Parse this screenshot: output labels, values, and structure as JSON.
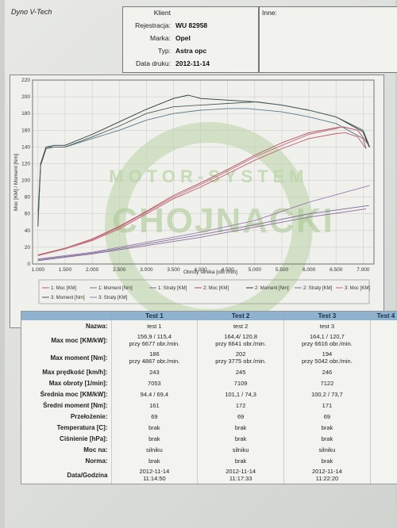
{
  "header": {
    "brand": "Dyno V-Tech",
    "klient_label": "Klient",
    "klient_value": "",
    "rejestracja_label": "Rejestracja:",
    "rejestracja_value": "WU 82958",
    "marka_label": "Marka:",
    "marka_value": "Opel",
    "typ_label": "Typ:",
    "typ_value": "Astra opc",
    "data_label": "Data druku:",
    "data_value": "2012-11-14",
    "inne_label": "Inne:"
  },
  "watermark": {
    "arc_text": "MOTOR-SYSTEM",
    "name": "CHOJNACKI"
  },
  "chart_data": {
    "type": "line",
    "xlabel": "Obroty silnika [obr./min]",
    "ylabel": "Moc [KM] / Moment [Nm]",
    "xlim": [
      900,
      7200
    ],
    "ylim": [
      0,
      220
    ],
    "xticks": [
      "1.000",
      "1.500",
      "2.000",
      "2.500",
      "3.000",
      "3.500",
      "4.000",
      "4.500",
      "5.000",
      "5.500",
      "6.000",
      "6.500",
      "7.000"
    ],
    "yticks": [
      "0",
      "20",
      "40",
      "60",
      "80",
      "100",
      "120",
      "140",
      "160",
      "180",
      "200",
      "220"
    ],
    "grid": true,
    "legend_position": "bottom",
    "series": [
      {
        "name": "1: Moc [KM]",
        "color": "#c25a6a",
        "x": [
          1000,
          1500,
          2000,
          2500,
          3000,
          3500,
          4000,
          4500,
          5000,
          5500,
          6000,
          6500,
          6677,
          6900,
          7053
        ],
        "y": [
          10,
          18,
          28,
          42,
          60,
          78,
          92,
          108,
          124,
          138,
          150,
          156,
          157,
          152,
          138
        ]
      },
      {
        "name": "1: Moment [Nm]",
        "color": "#5a7a8a",
        "x": [
          1000,
          1050,
          1150,
          1300,
          1500,
          2000,
          2500,
          3000,
          3500,
          4000,
          4500,
          4867,
          5500,
          6000,
          6500,
          7000,
          7053
        ],
        "y": [
          62,
          120,
          140,
          140,
          140,
          150,
          160,
          172,
          180,
          184,
          186,
          186,
          182,
          176,
          168,
          150,
          138
        ]
      },
      {
        "name": "1: Straty [KM]",
        "color": "#8a6a9a",
        "x": [
          1000,
          2000,
          3000,
          4000,
          5000,
          6000,
          7053
        ],
        "y": [
          4,
          12,
          22,
          32,
          44,
          56,
          66
        ]
      },
      {
        "name": "2: Moc [KM]",
        "color": "#b05060",
        "x": [
          1000,
          1500,
          2000,
          2500,
          3000,
          3500,
          4000,
          4500,
          5000,
          5500,
          6000,
          6500,
          6641,
          6900,
          7109
        ],
        "y": [
          11,
          19,
          30,
          45,
          63,
          82,
          97,
          113,
          130,
          145,
          157,
          163,
          164,
          160,
          142
        ]
      },
      {
        "name": "2: Moment [Nm]",
        "color": "#2a3a3a",
        "x": [
          1000,
          1050,
          1150,
          1300,
          1500,
          2000,
          2500,
          3000,
          3500,
          3775,
          4000,
          4500,
          5000,
          5500,
          6000,
          6500,
          7000,
          7109
        ],
        "y": [
          45,
          120,
          140,
          142,
          142,
          155,
          170,
          185,
          198,
          202,
          198,
          196,
          194,
          190,
          184,
          176,
          158,
          140
        ]
      },
      {
        "name": "2: Straty [KM]",
        "color": "#7a6a9a",
        "x": [
          1000,
          2000,
          3000,
          4000,
          5000,
          6000,
          7109
        ],
        "y": [
          5,
          13,
          24,
          35,
          47,
          60,
          70
        ]
      },
      {
        "name": "3: Moc [KM]",
        "color": "#c26a7a",
        "x": [
          1000,
          1500,
          2000,
          2500,
          3000,
          3500,
          4000,
          4500,
          5000,
          5500,
          6000,
          6500,
          6616,
          6900,
          7122
        ],
        "y": [
          10,
          18,
          29,
          44,
          62,
          80,
          95,
          111,
          128,
          142,
          155,
          162,
          164,
          160,
          140
        ]
      },
      {
        "name": "3: Moment [Nm]",
        "color": "#4a5a5a",
        "x": [
          1000,
          1050,
          1150,
          1300,
          1500,
          2000,
          2500,
          3000,
          3500,
          4000,
          4500,
          5042,
          5500,
          6000,
          6500,
          7000,
          7122
        ],
        "y": [
          50,
          118,
          138,
          140,
          140,
          152,
          165,
          180,
          188,
          190,
          192,
          194,
          190,
          184,
          176,
          160,
          140
        ]
      },
      {
        "name": "3: Straty [KM]",
        "color": "#9a7aaa",
        "x": [
          1000,
          2000,
          3000,
          4000,
          5000,
          6000,
          7122
        ],
        "y": [
          6,
          14,
          26,
          38,
          52,
          74,
          94
        ]
      }
    ]
  },
  "table": {
    "columns": [
      "Test 1",
      "Test 2",
      "Test 3",
      "Test 4"
    ],
    "rows": [
      {
        "label": "Nazwa:",
        "values": [
          [
            "test 1"
          ],
          [
            "test 2"
          ],
          [
            "test 3"
          ],
          [
            ""
          ]
        ]
      },
      {
        "label": "Max moc [KM/kW]:",
        "values": [
          [
            "156,9 / 115,4",
            "przy 6677 obr./min."
          ],
          [
            "164,4/ 120,8",
            "przy 6641 obr./min."
          ],
          [
            "164,1 / 120,7",
            "przy 6616 obr./min."
          ],
          [
            ""
          ]
        ]
      },
      {
        "label": "Max moment [Nm]:",
        "values": [
          [
            "186",
            "przy 4867 obr./min."
          ],
          [
            "202",
            "przy 3775 obr./min."
          ],
          [
            "194",
            "przy 5042 obr./min."
          ],
          [
            ""
          ]
        ]
      },
      {
        "label": "Max prędkość [km/h]:",
        "values": [
          [
            "243"
          ],
          [
            "245"
          ],
          [
            "246"
          ],
          [
            ""
          ]
        ]
      },
      {
        "label": "Max obroty [1/min]:",
        "values": [
          [
            "7053"
          ],
          [
            "7109"
          ],
          [
            "7122"
          ],
          [
            ""
          ]
        ]
      },
      {
        "label": "Średnia moc [KM/kW]:",
        "values": [
          [
            "94,4 / 69,4"
          ],
          [
            "101,1 / 74,3"
          ],
          [
            "100,2 / 73,7"
          ],
          [
            ""
          ]
        ]
      },
      {
        "label": "Średni moment [Nm]:",
        "values": [
          [
            "161"
          ],
          [
            "172"
          ],
          [
            "171"
          ],
          [
            ""
          ]
        ]
      },
      {
        "label": "Przełożenie:",
        "values": [
          [
            "69"
          ],
          [
            "69"
          ],
          [
            "69"
          ],
          [
            ""
          ]
        ]
      },
      {
        "label": "Temperatura [C]:",
        "values": [
          [
            "brak"
          ],
          [
            "brak"
          ],
          [
            "brak"
          ],
          [
            ""
          ]
        ]
      },
      {
        "label": "Ciśnienie [hPa]:",
        "values": [
          [
            "brak"
          ],
          [
            "brak"
          ],
          [
            "brak"
          ],
          [
            ""
          ]
        ]
      },
      {
        "label": "Moc na:",
        "values": [
          [
            "silniku"
          ],
          [
            "silniku"
          ],
          [
            "silniku"
          ],
          [
            ""
          ]
        ]
      },
      {
        "label": "Norma:",
        "values": [
          [
            "brak"
          ],
          [
            "brak"
          ],
          [
            "brak"
          ],
          [
            ""
          ]
        ]
      },
      {
        "label": "Data/Godzina",
        "values": [
          [
            "2012-11-14",
            "11:14:50"
          ],
          [
            "2012-11-14",
            "11:17:33"
          ],
          [
            "2012-11-14",
            "11:22:20"
          ],
          [
            ""
          ]
        ]
      }
    ]
  }
}
